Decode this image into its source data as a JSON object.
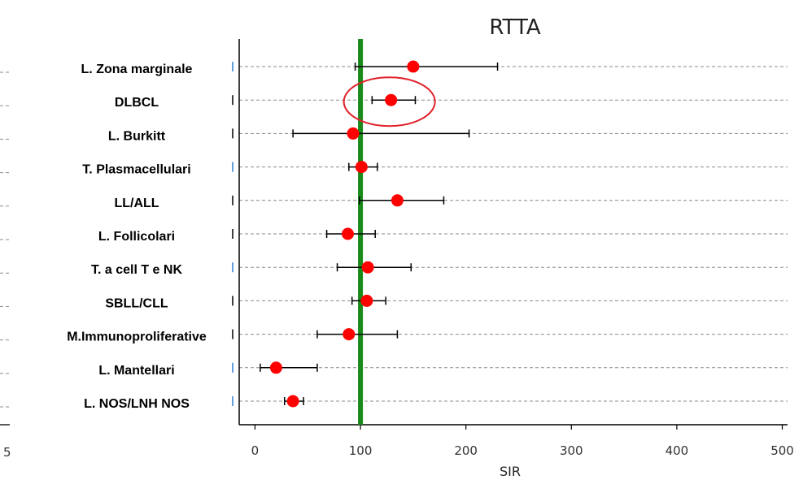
{
  "chart_data": {
    "type": "forest",
    "title": "RTTA",
    "xlabel": "SIR",
    "xlim": [
      -15,
      505
    ],
    "xticks": [
      0,
      100,
      200,
      300,
      400,
      500
    ],
    "reference_line": 100,
    "reference_color": "#1a8a1a",
    "point_color": "#ff0000",
    "highlight_color": "#e0202a",
    "highlighted_category": "DLBCL",
    "left_edge_tick_label": "5",
    "categories": [
      "L. Zona marginale",
      "DLBCL",
      "L. Burkitt",
      "T. Plasmacellulari",
      "LL/ALL",
      "L. Follicolari",
      "T. a cell T e NK",
      "SBLL/CLL",
      "M.Immunoproliferative",
      "L. Mantellari",
      "L. NOS/LNH NOS"
    ],
    "values": [
      150,
      129,
      93,
      101,
      135,
      88,
      107,
      106,
      89,
      20,
      36
    ],
    "ci_lower": [
      95,
      111,
      36,
      89,
      99,
      68,
      78,
      92,
      59,
      5,
      28
    ],
    "ci_upper": [
      230,
      152,
      203,
      116,
      179,
      114,
      148,
      124,
      135,
      59,
      46
    ]
  }
}
